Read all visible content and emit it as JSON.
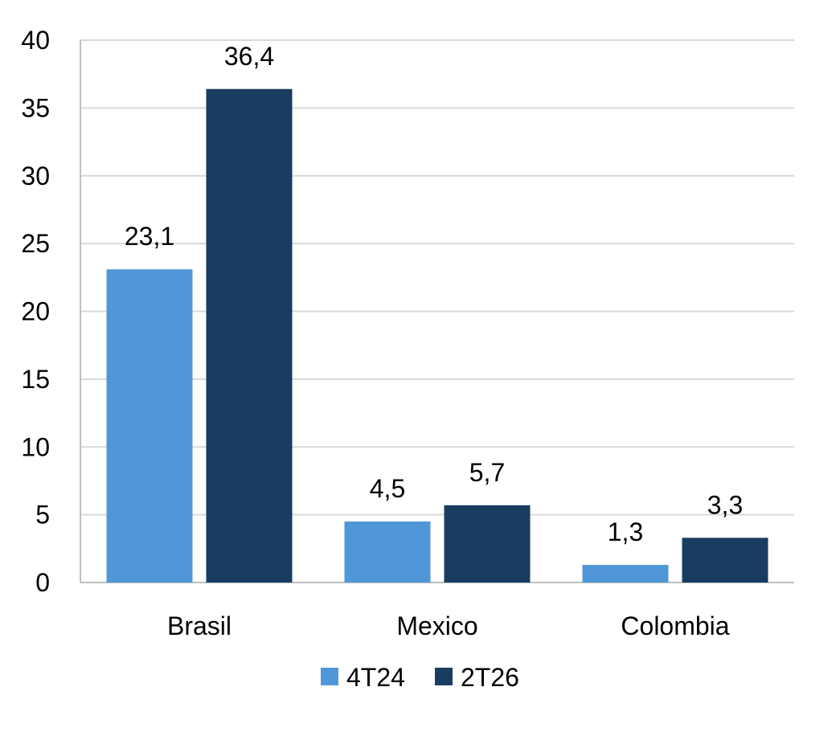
{
  "chart_data": {
    "type": "bar",
    "categories": [
      "Brasil",
      "Mexico",
      "Colombia"
    ],
    "series": [
      {
        "name": "4T24",
        "values": [
          23.1,
          4.5,
          1.3
        ],
        "labels": [
          "23,1",
          "4,5",
          "1,3"
        ],
        "color": "#5097DA"
      },
      {
        "name": "2T26",
        "values": [
          36.4,
          5.7,
          3.3
        ],
        "labels": [
          "36,4",
          "5,7",
          "3,3"
        ],
        "color": "#193C61"
      }
    ],
    "ylim": [
      0,
      40
    ],
    "yticks": [
      0,
      5,
      10,
      15,
      20,
      25,
      30,
      35,
      40
    ],
    "ytick_labels": [
      "0",
      "5",
      "10",
      "15",
      "20",
      "25",
      "30",
      "35",
      "40"
    ],
    "grid": true,
    "legend_position": "bottom"
  }
}
